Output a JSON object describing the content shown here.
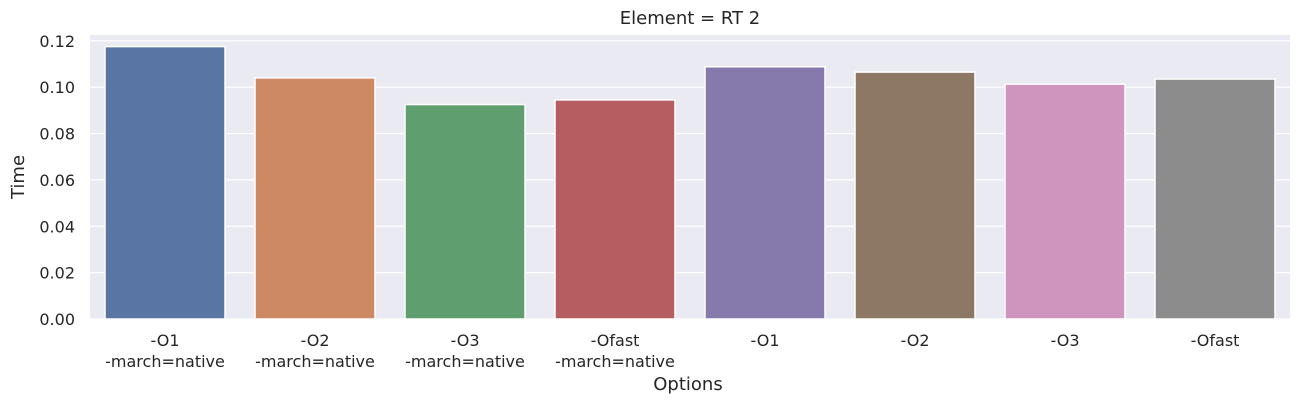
{
  "chart_data": {
    "type": "bar",
    "title": "Element = RT 2",
    "xlabel": "Options",
    "ylabel": "Time",
    "categories": [
      [
        "-O1",
        "-march=native"
      ],
      [
        "-O2",
        "-march=native"
      ],
      [
        "-O3",
        "-march=native"
      ],
      [
        "-Ofast",
        "-march=native"
      ],
      [
        "-O1"
      ],
      [
        "-O2"
      ],
      [
        "-O3"
      ],
      [
        "-Ofast"
      ]
    ],
    "values": [
      0.1175,
      0.104,
      0.0925,
      0.0945,
      0.1088,
      0.1065,
      0.1013,
      0.1035
    ],
    "colors": [
      "#5875a4",
      "#cc8963",
      "#5f9e6e",
      "#b55d60",
      "#857aab",
      "#8d7866",
      "#d095bf",
      "#8c8c8c"
    ],
    "yticks": [
      "0.00",
      "0.02",
      "0.04",
      "0.06",
      "0.08",
      "0.10",
      "0.12"
    ],
    "ylim": [
      0,
      0.1225
    ],
    "grid": true,
    "background": "#eaeaf2"
  }
}
